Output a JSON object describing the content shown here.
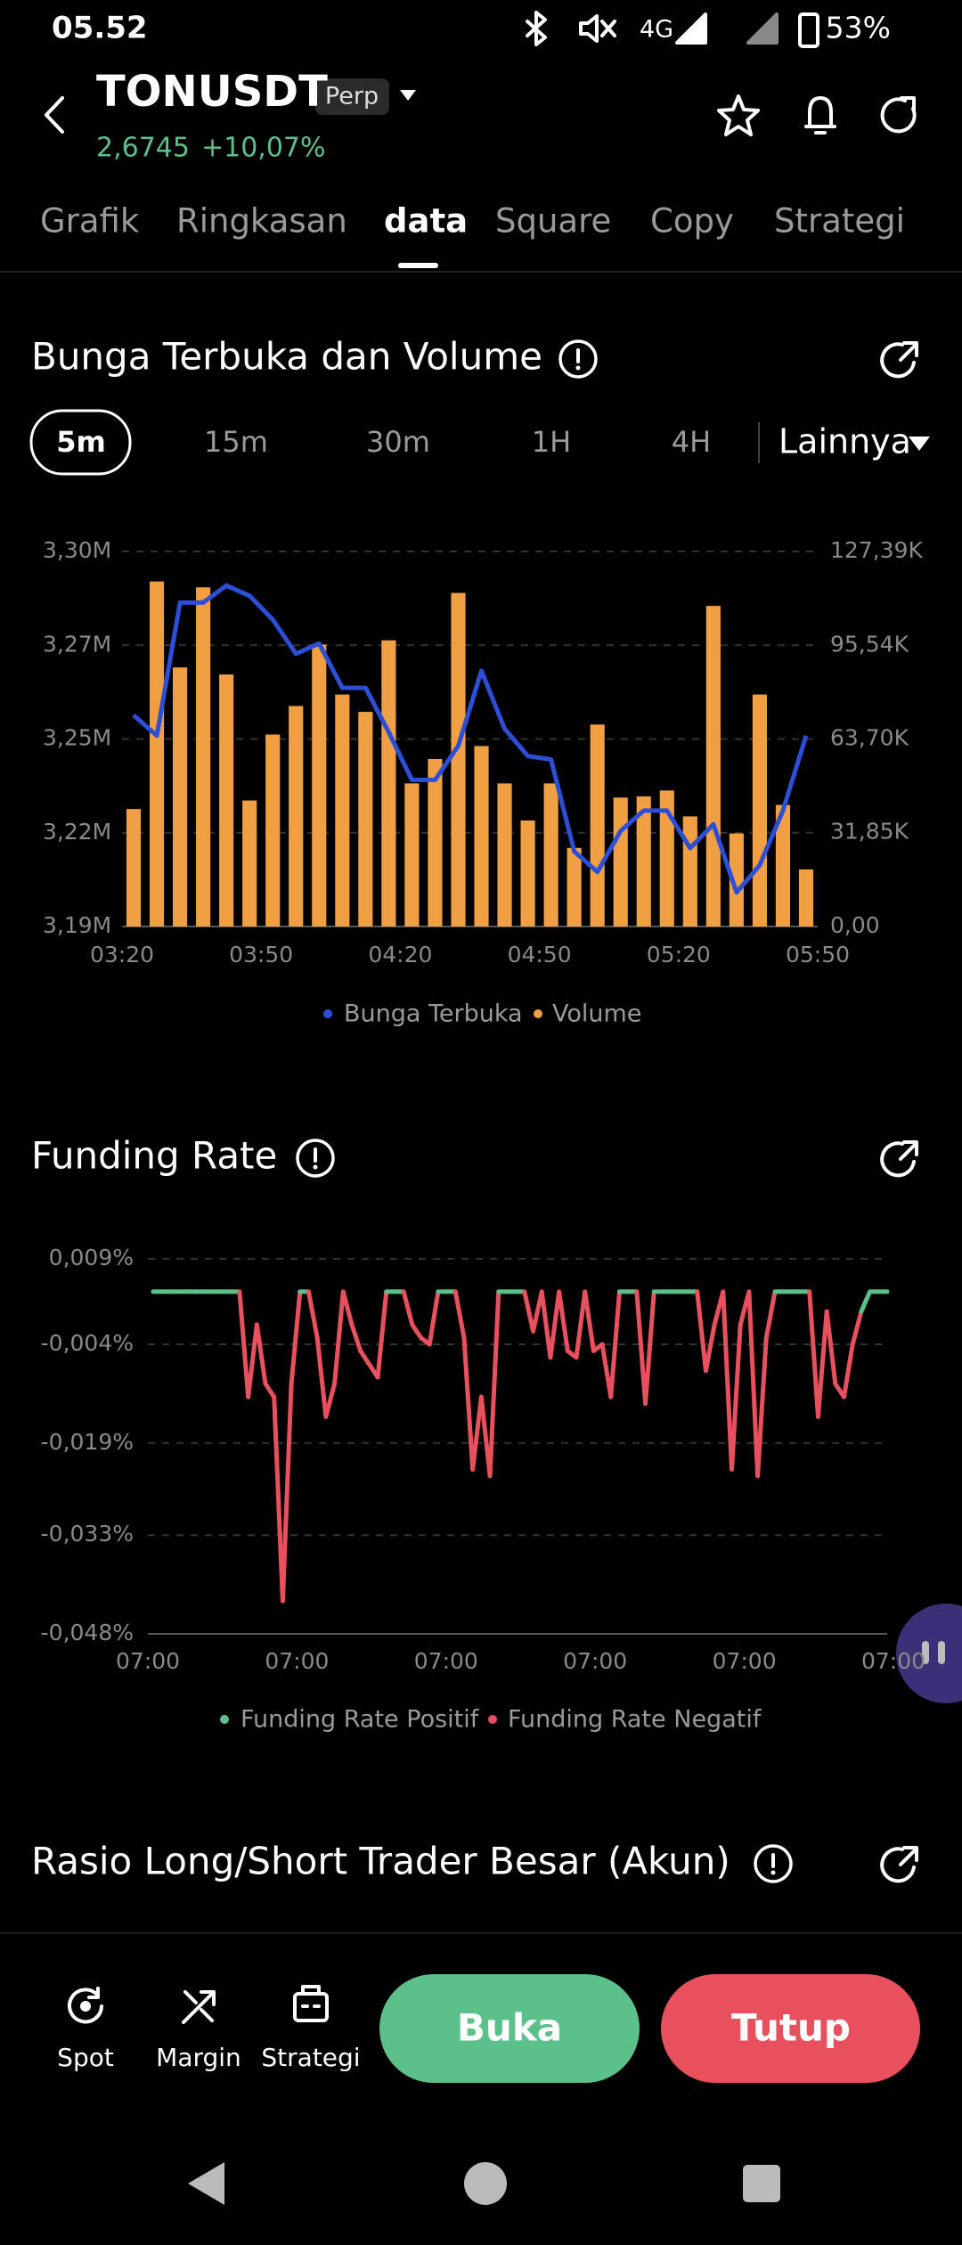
{
  "status_bar": {
    "time": "05.52",
    "network": "4G",
    "battery": "53%"
  },
  "header": {
    "symbol": "TONUSDT",
    "badge": "Perp",
    "price": "2,6745",
    "change": "+10,07%"
  },
  "tabs": [
    "Grafik",
    "Ringkasan",
    "data",
    "Square",
    "Copy",
    "Strategi"
  ],
  "sections": [
    {
      "title": "Bunga Terbuka dan Volume"
    },
    {
      "title": "Funding Rate"
    },
    {
      "title": "Rasio Long/Short Trader Besar (Akun)"
    }
  ],
  "intervals": [
    "5m",
    "15m",
    "30m",
    "1H",
    "4H",
    "Lainnya"
  ],
  "chart_data": [
    {
      "type": "combo",
      "xticks": [
        "03:20",
        "03:50",
        "04:20",
        "04:50",
        "05:20",
        "05:50"
      ],
      "ylim": [
        3.19,
        3.3
      ],
      "yticks": [
        {
          "value": 3.19,
          "label": "3,19M"
        },
        {
          "value": 3.2175,
          "label": "3,22M"
        },
        {
          "value": 3.245,
          "label": "3,25M"
        },
        {
          "value": 3.2725,
          "label": "3,27M"
        },
        {
          "value": 3.3,
          "label": "3,30M"
        }
      ],
      "y2lim": [
        0,
        127.39
      ],
      "y2ticks": [
        {
          "value": 0,
          "label": "0,00"
        },
        {
          "value": 31.85,
          "label": "31,85K"
        },
        {
          "value": 63.7,
          "label": "63,70K"
        },
        {
          "value": 95.54,
          "label": "95,54K"
        },
        {
          "value": 127.39,
          "label": "127,39K"
        }
      ],
      "grid": true,
      "series": [
        {
          "name": "Bunga Terbuka",
          "type": "line",
          "color": "#2b4fd8",
          "values": [
            3.252,
            3.246,
            3.285,
            3.285,
            3.29,
            3.287,
            3.28,
            3.27,
            3.273,
            3.26,
            3.26,
            3.247,
            3.233,
            3.233,
            3.243,
            3.265,
            3.248,
            3.24,
            3.239,
            3.212,
            3.206,
            3.218,
            3.224,
            3.224,
            3.213,
            3.22,
            3.2,
            3.208,
            3.224,
            3.246
          ]
        },
        {
          "name": "Volume",
          "type": "bar",
          "axis": "y2",
          "color": "#f0a042",
          "values": [
            39.9,
            117.2,
            88,
            115.2,
            85.6,
            42.8,
            65.2,
            74.9,
            95.8,
            78.8,
            72.9,
            97.2,
            48.6,
            56.9,
            113.3,
            61.3,
            48.6,
            36,
            48.6,
            26.7,
            68.6,
            43.8,
            44.2,
            46.2,
            37.4,
            108.9,
            31.6,
            78.8,
            41.3,
            19.4
          ]
        }
      ]
    },
    {
      "type": "line",
      "xticks": [
        "07:00",
        "07:00",
        "07:00",
        "07:00",
        "07:00",
        "07:00"
      ],
      "ylim": [
        -0.048,
        0.009
      ],
      "yticks": [
        {
          "value": 0.009,
          "label": "0,009%"
        },
        {
          "value": -0.004,
          "label": "-0,004%"
        },
        {
          "value": -0.019,
          "label": "-0,019%"
        },
        {
          "value": -0.033,
          "label": "-0,033%"
        },
        {
          "value": -0.048,
          "label": "-0,048%"
        }
      ],
      "grid": true,
      "values": [
        0.004,
        0.004,
        0.004,
        0.004,
        0.004,
        0.004,
        0.004,
        0.004,
        0.004,
        0.004,
        0.004,
        -0.012,
        -0.001,
        -0.01,
        -0.012,
        -0.043,
        -0.01,
        0.004,
        0.004,
        -0.003,
        -0.015,
        -0.01,
        0.004,
        -0.001,
        -0.005,
        -0.007,
        -0.009,
        0.004,
        0.004,
        0.004,
        -0.001,
        -0.003,
        -0.004,
        0.004,
        0.004,
        0.004,
        -0.003,
        -0.023,
        -0.012,
        -0.024,
        0.004,
        0.004,
        0.004,
        0.004,
        -0.002,
        0.004,
        -0.006,
        0.004,
        -0.005,
        -0.006,
        0.004,
        -0.005,
        -0.004,
        -0.012,
        0.004,
        0.004,
        0.004,
        -0.013,
        0.004,
        0.004,
        0.004,
        0.004,
        0.004,
        0.004,
        -0.008,
        -0.001,
        0.004,
        -0.023,
        -0.001,
        0.004,
        -0.024,
        -0.003,
        0.004,
        0.004,
        0.004,
        0.004,
        0.004,
        -0.015,
        0.001,
        -0.01,
        -0.012,
        -0.004,
        0.001,
        0.004,
        0.004,
        0.004
      ],
      "legend": [
        {
          "name": "Funding Rate Positif",
          "color": "#5cc08a"
        },
        {
          "name": "Funding Rate Negatif",
          "color": "#e8505e"
        }
      ]
    }
  ],
  "bottom_bar": {
    "nav": [
      "Spot",
      "Margin",
      "Strategi"
    ],
    "buttons": [
      "Buka",
      "Tutup"
    ]
  }
}
